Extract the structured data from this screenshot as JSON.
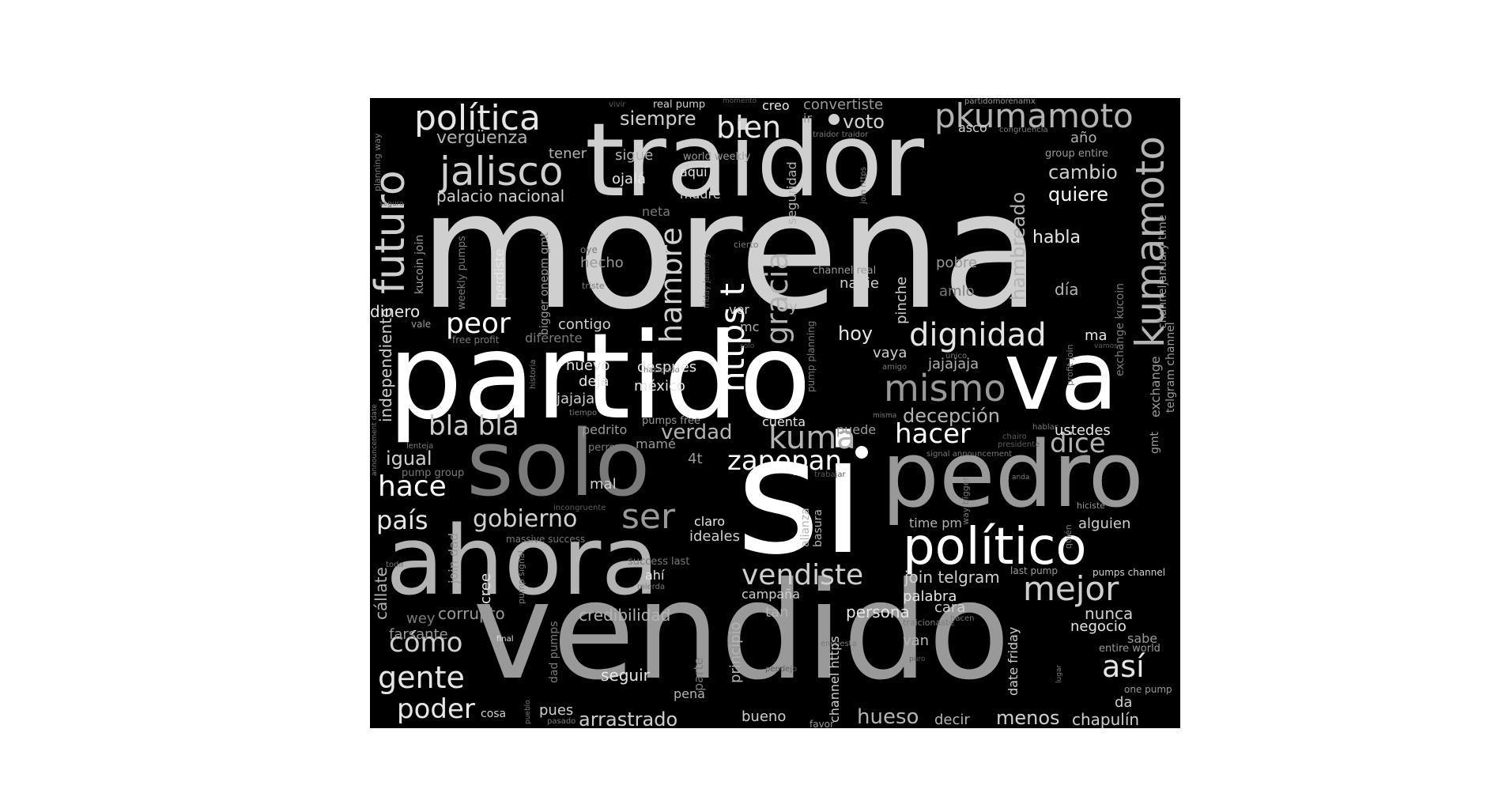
{
  "words": {
    "morena": "morena",
    "partido": "partido",
    "vendido": "vendido",
    "si": "si",
    "traidor": "traidor",
    "solo": "solo",
    "ahora": "ahora",
    "pedro": "pedro",
    "va": "va",
    "politico": "político",
    "politica": "política",
    "jalisco": "jalisco",
    "futuro": "futuro",
    "pkumamoto": "pkumamoto",
    "kumamoto": "kumamoto",
    "dignidad": "dignidad",
    "mismo": "mismo",
    "hambre": "hambre",
    "https_t": "https t",
    "gracia": "gracia",
    "peor": "peor",
    "bla_bla": "bla bla",
    "kuma": "kuma",
    "zapopan": "zapopan",
    "hacer": "hacer",
    "dice": "dice",
    "mejor": "mejor",
    "vendiste": "vendiste",
    "gobierno": "gobierno",
    "ser": "ser",
    "hace": "hace",
    "pais": "país",
    "gente": "gente",
    "poder": "poder",
    "como": "cómo",
    "asi": "así",
    "bien": "bien",
    "siempre": "siempre",
    "voto": "voto",
    "verguenza": "vergüenza",
    "palacio_nacional": "palacio nacional",
    "cambio": "cambio",
    "quiere": "quiere",
    "hambreado": "hambreado",
    "habla": "habla",
    "hoy": "hoy",
    "decepcion": "decepción",
    "verdad": "verdad",
    "igual": "igual",
    "independiente": "independiente",
    "dinero": "dinero",
    "arrastrado": "arrastrado",
    "hueso": "hueso",
    "menos": "menos",
    "chapulin": "chapulín",
    "nunca": "nunca",
    "negocio": "negocio",
    "seguir": "seguir",
    "credibilidad": "credibilidad",
    "corrupto": "corrupto",
    "farsante": "farsante",
    "callate": "cállate",
    "cree": "cree",
    "persona": "persona",
    "palabra": "palabra",
    "join_telgram": "join telgram",
    "alguien": "alguien",
    "ustedes": "ustedes",
    "jajajaja": "jajajaja",
    "vaya": "vaya",
    "pinche": "pinche",
    "nadie": "nadie",
    "pobre": "pobre",
    "amlo": "amlo",
    "dia": "día",
    "ma": "ma",
    "nuevo": "nuevo",
    "deja": "deja",
    "jajaja": "jajaja",
    "despues": "después",
    "mexico": "méxico",
    "contigo": "contigo",
    "diferente": "diferente",
    "tener": "tener",
    "sigue": "sigue",
    "ojala": "ojalá",
    "aqui": "aquí",
    "madre": "madre",
    "neta": "neta",
    "hecho": "hecho",
    "creo": "creo",
    "convertiste": "convertiste",
    "ir": "ir",
    "seguridad": "seguridad",
    "asco": "asco",
    "ano": "año",
    "group_entire": "group entire",
    "world_weekly": "world weekly",
    "real_pump": "real pump",
    "partidomorenamx": "partidomorenamx",
    "congruencia": "congruencia",
    "traidor_traidor": "traidor traidor",
    "join_https": "join https",
    "vivir": "vivir",
    "momento": "momento",
    "planning_way": "planning way",
    "seguro": "seguro",
    "kucoin_join": "kucoin join",
    "weekly_pumps": "weekly pumps",
    "perdiste": "perdiste",
    "bigger_onepm_gmt": "bigger onepm gmt",
    "oye": "oye",
    "triste": "triste",
    "vale": "vale",
    "free_profit": "free profit",
    "ver": "ver",
    "mc": "mc",
    "y": "y",
    "friday_january": "friday january",
    "cierto": "cierto",
    "channel_real": "channel real",
    "exchange_kucoin": "exchange kucoin",
    "channel_january_time": "channeljanuary time",
    "exchange": "exchange",
    "telgram_channel": "telgram channel",
    "gmt": "gmt",
    "profit_join": "profit join",
    "vamos": "vamos",
    "unico": "único",
    "amigo": "amigo",
    "misma": "misma",
    "solo_ac": "sólo",
    "historia": "historia",
    "haciendo": "haciendo",
    "tiempo": "tiempo",
    "pump_planning": "pump planning",
    "pumps_free": "pumps free",
    "cuenta": "cuenta",
    "puede": "puede",
    "pedrito": "pedrito",
    "perro": "perro",
    "mame": "mamé",
    "lenteja": "lenteja",
    "announcement_date": "announcement date",
    "pump_group": "pump group",
    "4t": "4t",
    "mal": "mal",
    "trabajar": "trabajar",
    "hablar": "hablar",
    "chairo": "chairo",
    "presidente": "presidente",
    "signal_announcement": "signal announcement",
    "anda": "anda",
    "hiciste": "hiciste",
    "way_bigger": "way bigger",
    "quien": "quién",
    "incongruente": "incongruente",
    "join_dad": "join dad",
    "claro": "claro",
    "ideales": "ideales",
    "alianza": "alianza",
    "basura": "basura",
    "time_pm": "time pm",
    "massive_success": "massive success",
    "pump_signal": "pump signal",
    "success_last": "success last",
    "ahi": "ahí",
    "mierda": "mierda",
    "last_pump": "last pump",
    "pumps_channel": "pumps channel",
    "toda": "toda",
    "campana": "campaña",
    "tan": "tan",
    "principio": "principio",
    "cara": "cara",
    "hacen": "hacen",
    "traicionaste": "traicionaste",
    "sabe": "sabe",
    "entire_world": "entire world",
    "wey": "wey",
    "dad_pumps": "dad pumps",
    "final": "final",
    "encuesta": "encuesta",
    "channel_https": "channel https",
    "parte": "parte",
    "van": "van",
    "date_friday": "date friday",
    "puro": "puro",
    "lugar": "lugar",
    "one_pump": "one pump",
    "pendejo": "pendejo",
    "pena": "pena",
    "da": "da",
    "puebla": "pueblo",
    "cosa": "cosa",
    "pues": "pues",
    "pasado": "pasado",
    "bueno": "bueno",
    "favor": "favor",
    "decir": "decir"
  }
}
